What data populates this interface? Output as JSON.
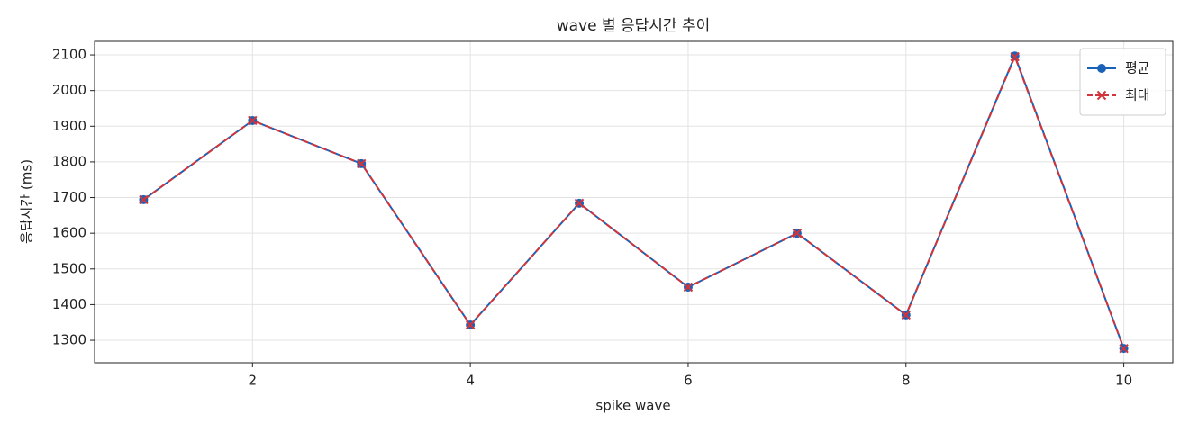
{
  "chart_data": {
    "type": "line",
    "title": "wave 별 응답시간 추이",
    "x_label": "spike wave",
    "y_label": "응답시간 (ms)",
    "x": [
      1,
      2,
      3,
      4,
      5,
      6,
      7,
      8,
      9,
      10
    ],
    "series": [
      {
        "name": "평균",
        "color": "#1a62b8",
        "marker": "o",
        "linestyle": "solid",
        "values": [
          1694,
          1916,
          1795,
          1343,
          1684,
          1449,
          1600,
          1371,
          2097,
          1277
        ]
      },
      {
        "name": "최대",
        "color": "#d1343a",
        "marker": "x",
        "linestyle": "dashed",
        "values": [
          1694,
          1916,
          1795,
          1343,
          1684,
          1449,
          1600,
          1371,
          2095,
          1277
        ]
      }
    ],
    "xlim": [
      0.55,
      10.45
    ],
    "ylim": [
      1237,
      2138
    ],
    "xticks": [
      2,
      4,
      6,
      8,
      10
    ],
    "yticks": [
      1300,
      1400,
      1500,
      1600,
      1700,
      1800,
      1900,
      2000,
      2100
    ],
    "grid": true,
    "legend_loc": "upper right"
  }
}
